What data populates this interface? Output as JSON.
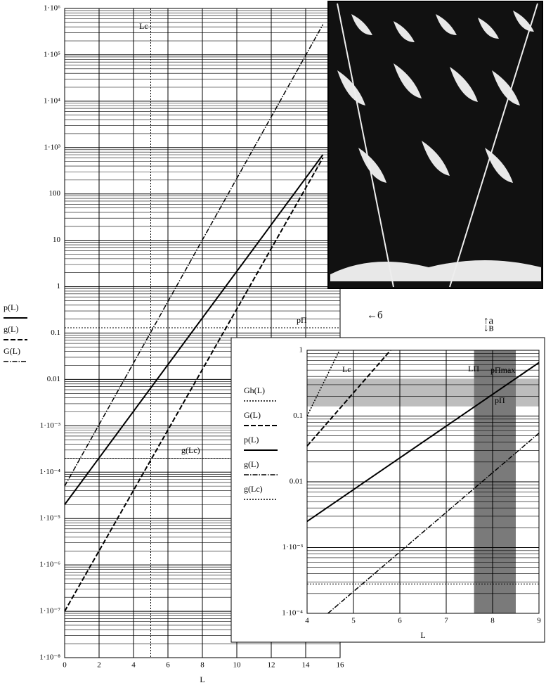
{
  "chart_data": [
    {
      "type": "line",
      "xlabel": "L",
      "xlim": [
        0,
        16
      ],
      "xticks": [
        0,
        2,
        4,
        6,
        8,
        10,
        12,
        14,
        16
      ],
      "ylim": [
        1e-08,
        1000000
      ],
      "log_y": true,
      "grid": true,
      "yticks": [
        {
          "value": 1000000,
          "label": "1·10⁶"
        },
        {
          "value": 100000,
          "label": "1·10⁵"
        },
        {
          "value": 10000,
          "label": "1·10⁴"
        },
        {
          "value": 1000,
          "label": "1·10³"
        },
        100,
        10,
        1,
        0.1,
        0.01,
        {
          "value": 0.001,
          "label": "1·10⁻³"
        },
        {
          "value": 0.0001,
          "label": "1·10⁻⁴"
        },
        {
          "value": 1e-05,
          "label": "1·10⁻⁵"
        },
        {
          "value": 1e-06,
          "label": "1·10⁻⁶"
        },
        {
          "value": 1e-07,
          "label": "1·10⁻⁷"
        },
        {
          "value": 1e-08,
          "label": "1·10⁻⁸"
        }
      ],
      "series": [
        {
          "name": "p(L)",
          "style": "solid",
          "color": "#000000",
          "x": [
            0,
            15
          ],
          "values": [
            2e-05,
            700
          ]
        },
        {
          "name": "g(L)",
          "style": "dashed",
          "color": "#000000",
          "x": [
            0,
            15
          ],
          "values": [
            1e-07,
            600
          ]
        },
        {
          "name": "G(L)",
          "style": "dashdot",
          "color": "#000000",
          "x": [
            0,
            15
          ],
          "values": [
            5e-05,
            450000
          ]
        }
      ],
      "hlines": [
        {
          "label": "pΠ",
          "value": 0.13,
          "style": "dotted"
        },
        {
          "label": "g(Lc)",
          "value": 0.0002,
          "style": "dotted"
        }
      ],
      "vlines": [
        {
          "label": "Lc",
          "value": 5,
          "style": "dotted"
        }
      ]
    },
    {
      "type": "line",
      "xlabel": "L",
      "xlim": [
        4,
        9
      ],
      "xticks": [
        4,
        5,
        6,
        7,
        8,
        9
      ],
      "ylim": [
        0.0001,
        1
      ],
      "log_y": true,
      "grid": true,
      "yticks": [
        1,
        0.1,
        0.01,
        {
          "value": 0.001,
          "label": "1·10⁻³"
        },
        {
          "value": 0.0001,
          "label": "1·10⁻⁴"
        }
      ],
      "series": [
        {
          "name": "Gh(L)",
          "style": "dotted",
          "color": "#000000",
          "x": [
            4,
            4.7
          ],
          "values": [
            0.1,
            1
          ]
        },
        {
          "name": "G(L)",
          "style": "dashed",
          "color": "#000000",
          "x": [
            4,
            5.8
          ],
          "values": [
            0.035,
            1
          ]
        },
        {
          "name": "p(L)",
          "style": "solid",
          "color": "#000000",
          "x": [
            4,
            9
          ],
          "values": [
            0.0025,
            0.65
          ]
        },
        {
          "name": "g(L)",
          "style": "dashdot",
          "color": "#000000",
          "x": [
            4.45,
            9
          ],
          "values": [
            0.0001,
            0.055
          ]
        }
      ],
      "hlines": [
        {
          "label": "g(Lc)",
          "value": 0.00028,
          "style": "dotted",
          "in_legend": true
        }
      ],
      "hband": [
        0.14,
        0.37
      ],
      "hband_color": "#bdbdbd",
      "vband": [
        7.6,
        8.5
      ],
      "vband_color": "#7a7a7a",
      "annotations": [
        "Lc",
        "LΠ",
        "pΠmax",
        "pΠ"
      ]
    }
  ],
  "figure_labels": [
    "↑a",
    "↓в",
    "←б"
  ]
}
